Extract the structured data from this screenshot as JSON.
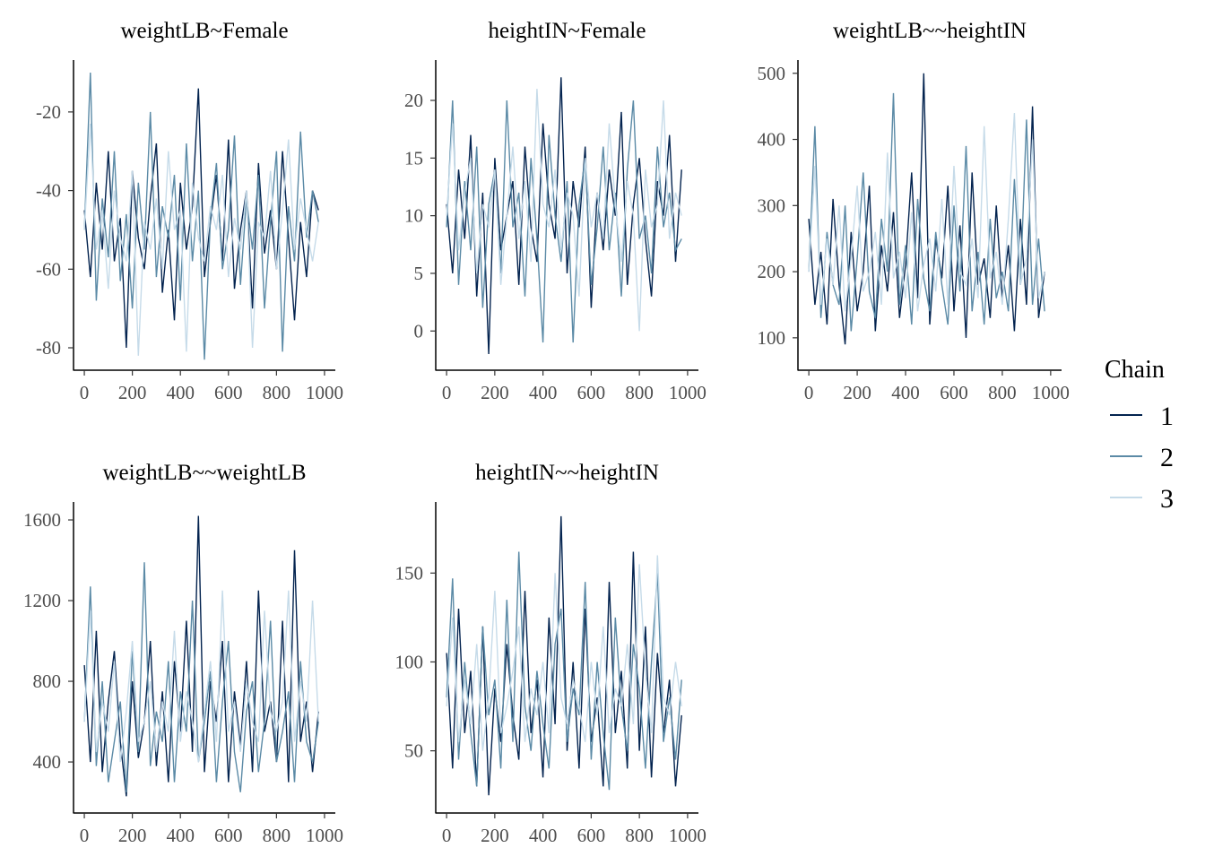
{
  "chart_data": [
    {
      "type": "line",
      "title": "weightLB~Female",
      "xlim": [
        -45,
        1045
      ],
      "ylim": [
        -85.7,
        -6.8
      ],
      "xticks": [
        0,
        200,
        400,
        600,
        800,
        1000
      ],
      "yticks": [
        -20,
        -40,
        -60,
        -80
      ],
      "x": [
        0,
        25,
        50,
        75,
        100,
        125,
        150,
        175,
        200,
        225,
        250,
        275,
        300,
        325,
        350,
        375,
        400,
        425,
        450,
        475,
        500,
        525,
        550,
        575,
        600,
        625,
        650,
        675,
        700,
        725,
        750,
        775,
        800,
        825,
        850,
        875,
        900,
        925,
        950,
        975
      ],
      "series": [
        {
          "name": "1",
          "values": [
            -45,
            -62,
            -38,
            -55,
            -30,
            -58,
            -47,
            -80,
            -35,
            -52,
            -60,
            -42,
            -28,
            -66,
            -50,
            -73,
            -38,
            -55,
            -44,
            -14,
            -62,
            -48,
            -36,
            -58,
            -27,
            -65,
            -50,
            -40,
            -70,
            -33,
            -56,
            -45,
            -60,
            -30,
            -52,
            -73,
            -48,
            -62,
            -40,
            -45
          ]
        },
        {
          "name": "2",
          "values": [
            -50,
            -10,
            -68,
            -42,
            -57,
            -30,
            -63,
            -46,
            -70,
            -38,
            -55,
            -20,
            -62,
            -44,
            -52,
            -36,
            -68,
            -28,
            -58,
            -40,
            -83,
            -47,
            -33,
            -60,
            -50,
            -26,
            -64,
            -42,
            -55,
            -36,
            -70,
            -48,
            -30,
            -81,
            -44,
            -58,
            -25,
            -52,
            -40,
            -48
          ]
        },
        {
          "name": "3",
          "values": [
            -50,
            -23,
            -55,
            -45,
            -65,
            -40,
            -52,
            -58,
            -35,
            -82,
            -48,
            -55,
            -42,
            -60,
            -30,
            -50,
            -45,
            -81,
            -38,
            -52,
            -58,
            -44,
            -50,
            -36,
            -62,
            -47,
            -55,
            -40,
            -80,
            -48,
            -52,
            -35,
            -60,
            -45,
            -27,
            -55,
            -42,
            -50,
            -58,
            -48
          ]
        }
      ]
    },
    {
      "type": "line",
      "title": "heightIN~Female",
      "xlim": [
        -45,
        1045
      ],
      "ylim": [
        -3.4,
        23.5
      ],
      "xticks": [
        0,
        200,
        400,
        600,
        800,
        1000
      ],
      "yticks": [
        20,
        15,
        10,
        5,
        0
      ],
      "x": [
        0,
        25,
        50,
        75,
        100,
        125,
        150,
        175,
        200,
        225,
        250,
        275,
        300,
        325,
        350,
        375,
        400,
        425,
        450,
        475,
        500,
        525,
        550,
        575,
        600,
        625,
        650,
        675,
        700,
        725,
        750,
        775,
        800,
        825,
        850,
        875,
        900,
        925,
        950,
        975
      ],
      "series": [
        {
          "name": "1",
          "values": [
            11,
            5,
            14,
            8,
            17,
            3,
            12,
            -2,
            15,
            7,
            10,
            13,
            4,
            16,
            9,
            6,
            18,
            11,
            8,
            22,
            5,
            13,
            9,
            16,
            2,
            12,
            7,
            14,
            10,
            19,
            4,
            11,
            15,
            8,
            3,
            13,
            10,
            17,
            6,
            14
          ]
        },
        {
          "name": "2",
          "values": [
            9,
            20,
            4,
            13,
            7,
            16,
            2,
            11,
            14,
            5,
            20,
            9,
            12,
            3,
            15,
            8,
            -1,
            17,
            10,
            6,
            13,
            -1,
            11,
            15,
            4,
            9,
            16,
            7,
            12,
            3,
            14,
            20,
            8,
            10,
            5,
            16,
            9,
            12,
            7,
            8
          ]
        },
        {
          "name": "3",
          "values": [
            10,
            18,
            7,
            12,
            15,
            5,
            11,
            9,
            14,
            4,
            10,
            16,
            8,
            13,
            6,
            21,
            11,
            9,
            14,
            7,
            12,
            10,
            3,
            15,
            9,
            12,
            8,
            18,
            11,
            6,
            13,
            10,
            0,
            14,
            9,
            11,
            20,
            8,
            12,
            10
          ]
        }
      ]
    },
    {
      "type": "line",
      "title": "weightLB~~heightIN",
      "xlim": [
        -45,
        1045
      ],
      "ylim": [
        51,
        520
      ],
      "xticks": [
        0,
        200,
        400,
        600,
        800,
        1000
      ],
      "yticks": [
        500,
        400,
        300,
        200,
        100
      ],
      "x": [
        0,
        25,
        50,
        75,
        100,
        125,
        150,
        175,
        200,
        225,
        250,
        275,
        300,
        325,
        350,
        375,
        400,
        425,
        450,
        475,
        500,
        525,
        550,
        575,
        600,
        625,
        650,
        675,
        700,
        725,
        750,
        775,
        800,
        825,
        850,
        875,
        900,
        925,
        950,
        975
      ],
      "series": [
        {
          "name": "1",
          "values": [
            280,
            150,
            230,
            120,
            310,
            180,
            90,
            260,
            140,
            200,
            330,
            110,
            240,
            170,
            290,
            130,
            210,
            350,
            160,
            500,
            120,
            250,
            190,
            330,
            140,
            270,
            100,
            350,
            180,
            220,
            130,
            300,
            160,
            240,
            110,
            280,
            150,
            450,
            130,
            200
          ]
        },
        {
          "name": "2",
          "values": [
            200,
            420,
            130,
            260,
            180,
            150,
            300,
            110,
            220,
            350,
            170,
            130,
            280,
            200,
            470,
            150,
            240,
            120,
            310,
            190,
            140,
            260,
            180,
            120,
            300,
            170,
            390,
            140,
            230,
            120,
            280,
            160,
            200,
            140,
            340,
            180,
            430,
            150,
            250,
            140
          ]
        },
        {
          "name": "3",
          "values": [
            200,
            360,
            150,
            250,
            180,
            300,
            140,
            220,
            330,
            170,
            200,
            260,
            150,
            380,
            190,
            230,
            160,
            290,
            140,
            210,
            250,
            170,
            310,
            150,
            360,
            200,
            180,
            250,
            160,
            420,
            190,
            230,
            150,
            280,
            440,
            180,
            220,
            400,
            160,
            200
          ]
        }
      ]
    },
    {
      "type": "line",
      "title": "weightLB~~weightLB",
      "xlim": [
        -45,
        1045
      ],
      "ylim": [
        147,
        1689
      ],
      "xticks": [
        0,
        200,
        400,
        600,
        800,
        1000
      ],
      "yticks": [
        1600,
        1200,
        800,
        400
      ],
      "x": [
        0,
        25,
        50,
        75,
        100,
        125,
        150,
        175,
        200,
        225,
        250,
        275,
        300,
        325,
        350,
        375,
        400,
        425,
        450,
        475,
        500,
        525,
        550,
        575,
        600,
        625,
        650,
        675,
        700,
        725,
        750,
        775,
        800,
        825,
        850,
        875,
        900,
        925,
        950,
        975
      ],
      "series": [
        {
          "name": "1",
          "values": [
            880,
            400,
            1050,
            350,
            700,
            950,
            500,
            230,
            800,
            420,
            600,
            1000,
            380,
            750,
            300,
            900,
            550,
            1100,
            450,
            1620,
            350,
            800,
            600,
            1000,
            300,
            750,
            480,
            900,
            350,
            1250,
            550,
            700,
            400,
            1100,
            300,
            1450,
            500,
            700,
            350,
            650
          ]
        },
        {
          "name": "2",
          "values": [
            600,
            1270,
            380,
            800,
            300,
            500,
            700,
            250,
            950,
            450,
            1390,
            380,
            650,
            500,
            900,
            300,
            750,
            550,
            1200,
            400,
            600,
            850,
            300,
            700,
            1000,
            450,
            250,
            650,
            800,
            350,
            600,
            1100,
            400,
            550,
            750,
            300,
            900,
            500,
            400,
            600
          ]
        },
        {
          "name": "3",
          "values": [
            600,
            1150,
            450,
            700,
            550,
            900,
            400,
            650,
            1000,
            500,
            600,
            800,
            450,
            700,
            550,
            1050,
            500,
            750,
            600,
            400,
            650,
            900,
            500,
            1250,
            550,
            700,
            450,
            800,
            600,
            500,
            1150,
            650,
            550,
            700,
            1250,
            500,
            800,
            600,
            1200,
            600
          ]
        }
      ]
    },
    {
      "type": "line",
      "title": "heightIN~~heightIN",
      "xlim": [
        -45,
        1045
      ],
      "ylim": [
        15,
        190
      ],
      "xticks": [
        0,
        200,
        400,
        600,
        800,
        1000
      ],
      "yticks": [
        150,
        100,
        50
      ],
      "x": [
        0,
        25,
        50,
        75,
        100,
        125,
        150,
        175,
        200,
        225,
        250,
        275,
        300,
        325,
        350,
        375,
        400,
        425,
        450,
        475,
        500,
        525,
        550,
        575,
        600,
        625,
        650,
        675,
        700,
        725,
        750,
        775,
        800,
        825,
        850,
        875,
        900,
        925,
        950,
        975
      ],
      "series": [
        {
          "name": "1",
          "values": [
            105,
            40,
            130,
            60,
            95,
            30,
            120,
            25,
            85,
            55,
            110,
            70,
            45,
            140,
            60,
            90,
            35,
            125,
            65,
            182,
            50,
            100,
            40,
            130,
            55,
            80,
            30,
            145,
            60,
            95,
            40,
            162,
            50,
            120,
            35,
            105,
            60,
            90,
            30,
            70
          ]
        },
        {
          "name": "2",
          "values": [
            80,
            147,
            45,
            100,
            60,
            30,
            120,
            70,
            90,
            40,
            135,
            55,
            162,
            75,
            50,
            95,
            65,
            40,
            110,
            130,
            55,
            85,
            70,
            145,
            45,
            100,
            60,
            28,
            125,
            75,
            50,
            110,
            85,
            40,
            100,
            150,
            55,
            80,
            45,
            90
          ]
        },
        {
          "name": "3",
          "values": [
            75,
            125,
            55,
            90,
            65,
            110,
            50,
            80,
            140,
            60,
            75,
            95,
            120,
            55,
            85,
            70,
            100,
            60,
            150,
            80,
            65,
            90,
            75,
            55,
            100,
            70,
            120,
            60,
            85,
            75,
            110,
            65,
            155,
            95,
            60,
            160,
            80,
            70,
            100,
            75
          ]
        }
      ]
    }
  ],
  "legend": {
    "title": "Chain",
    "placement": "right",
    "entries": [
      {
        "label": "1",
        "color": "#03234f"
      },
      {
        "label": "2",
        "color": "#5b8aa6"
      },
      {
        "label": "3",
        "color": "#c6dbe9"
      }
    ]
  }
}
